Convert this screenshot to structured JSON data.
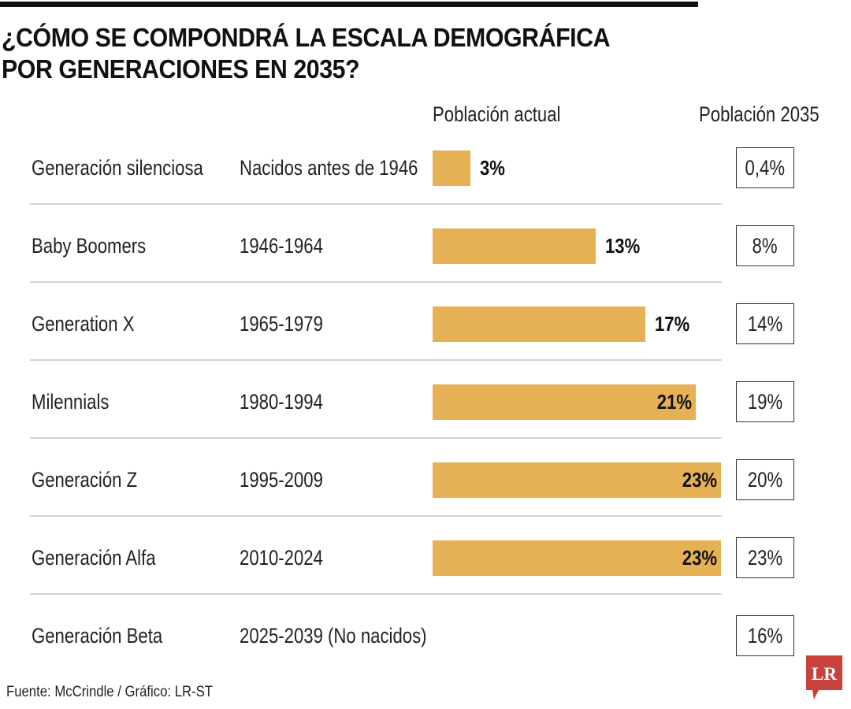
{
  "header": {
    "title_line1": "¿CÓMO SE COMPONDRÁ LA ESCALA DEMOGRÁFICA",
    "title_line2": "POR GENERACIONES EN 2035?"
  },
  "footer": {
    "source": "Fuente: McCrindle / Gráfico: LR-ST",
    "logo_text": "LR",
    "logo_color": "#C8413B"
  },
  "colors": {
    "bar": "#E6B055",
    "divider": "#d4d4d4",
    "text": "#222222"
  },
  "chart_data": {
    "type": "bar",
    "orientation": "horizontal",
    "title": "¿CÓMO SE COMPONDRÁ LA ESCALA DEMOGRÁFICA POR GENERACIONES EN 2035?",
    "column_headers": {
      "current": "Población actual",
      "future": "Población 2035"
    },
    "categories": [
      "Generación silenciosa",
      "Baby Boomers",
      "Generation X",
      "Milennials",
      "Generación Z",
      "Generación Alfa",
      "Generación Beta"
    ],
    "years": [
      "Nacidos antes de 1946",
      "1946-1964",
      "1965-1979",
      "1980-1994",
      "1995-2009",
      "2010-2024",
      "2025-2039 (No nacidos)"
    ],
    "series": [
      {
        "name": "Población actual",
        "unit": "%",
        "values": [
          3,
          13,
          17,
          21,
          23,
          23,
          null
        ],
        "labels": [
          "3%",
          "13%",
          "17%",
          "21%",
          "23%",
          "23%",
          ""
        ]
      },
      {
        "name": "Población 2035",
        "unit": "%",
        "values": [
          0.4,
          8,
          14,
          19,
          20,
          23,
          16
        ],
        "labels": [
          "0,4%",
          "8%",
          "14%",
          "19%",
          "20%",
          "23%",
          "16%"
        ]
      }
    ],
    "xlim": [
      0,
      23
    ],
    "grid": false,
    "legend": "none",
    "xlabel": "",
    "ylabel": ""
  }
}
